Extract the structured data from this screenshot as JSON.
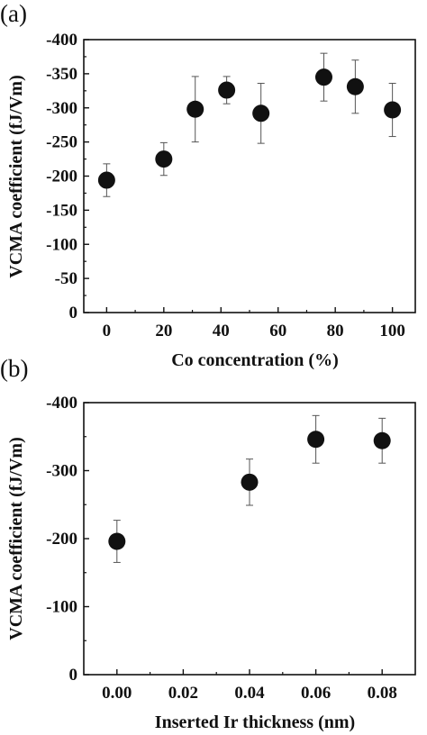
{
  "chart_data": [
    {
      "panel": "(a)",
      "type": "scatter",
      "xlabel": "Co concentration (%)",
      "ylabel": "VCMA coefficient (fJ/Vm)",
      "xlim": [
        -8,
        108
      ],
      "ylim": [
        0,
        -400
      ],
      "y_inverted": true,
      "xticks": [
        0,
        20,
        40,
        60,
        80,
        100
      ],
      "xtick_labels": [
        "0",
        "20",
        "40",
        "60",
        "80",
        "100"
      ],
      "yticks": [
        0,
        -50,
        -100,
        -150,
        -200,
        -250,
        -300,
        -350,
        -400
      ],
      "ytick_labels": [
        "0",
        "-50",
        "-100",
        "-150",
        "-200",
        "-250",
        "-300",
        "-350",
        "-400"
      ],
      "grid": false,
      "series": [
        {
          "x": [
            0,
            20,
            31,
            42,
            54,
            76,
            87,
            100
          ],
          "y": [
            -194,
            -225,
            -298,
            -326,
            -292,
            -345,
            -331,
            -297
          ],
          "error": [
            24,
            24,
            48,
            20,
            44,
            35,
            39,
            39
          ]
        }
      ]
    },
    {
      "panel": "(b)",
      "type": "scatter",
      "xlabel": "Inserted Ir thickness (nm)",
      "ylabel": "VCMA coefficient (fJ/Vm)",
      "xlim": [
        -0.01,
        0.09
      ],
      "ylim": [
        0,
        -400
      ],
      "y_inverted": true,
      "xticks": [
        0.0,
        0.02,
        0.04,
        0.06,
        0.08
      ],
      "xtick_labels": [
        "0.00",
        "0.02",
        "0.04",
        "0.06",
        "0.08"
      ],
      "yticks": [
        0,
        -100,
        -200,
        -300,
        -400
      ],
      "ytick_labels": [
        "0",
        "-100",
        "-200",
        "-300",
        "-400"
      ],
      "grid": false,
      "series": [
        {
          "x": [
            0.0,
            0.04,
            0.06,
            0.08
          ],
          "y": [
            -196,
            -283,
            -346,
            -344
          ],
          "error": [
            31,
            34,
            35,
            33
          ]
        }
      ]
    }
  ]
}
